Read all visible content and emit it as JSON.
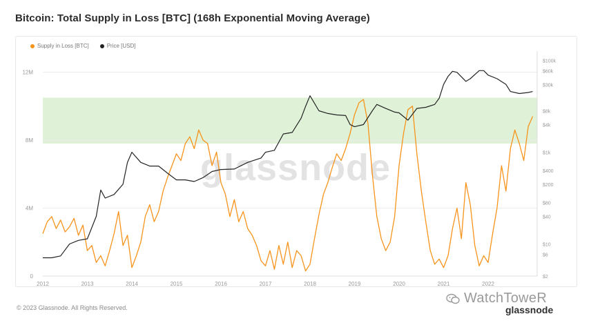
{
  "title": "Bitcoin: Total Supply in Loss [BTC] (168h Exponential Moving Average)",
  "footer": "© 2023 Glassnode. All Rights Reserved.",
  "watermark_center": "glassnode",
  "watermark_brand": "WatchToweR",
  "watermark_sub": "glassnode",
  "colors": {
    "supply": "#f7931a",
    "price": "#222222",
    "band": "#d9efcf",
    "grid": "#ececec",
    "axis_text": "#999999"
  },
  "chart_data": {
    "type": "line",
    "title": "Bitcoin: Total Supply in Loss [BTC] (168h Exponential Moving Average)",
    "legend": {
      "placement": "top-left",
      "entries": [
        "Supply in Loss [BTC]",
        "Price [USD]"
      ]
    },
    "x_ticks": [
      "2012",
      "2013",
      "2014",
      "2015",
      "2016",
      "2017",
      "2018",
      "2019",
      "2020",
      "2021",
      "2022"
    ],
    "x_range": [
      2012.0,
      2023.1
    ],
    "y_left": {
      "ticks": [
        "0",
        "4M",
        "8M",
        "12M"
      ],
      "values": [
        0,
        4000000,
        8000000,
        12000000
      ],
      "range": [
        0,
        13000000
      ]
    },
    "y_right": {
      "scale": "log",
      "ticks": [
        "$2",
        "$6",
        "$10",
        "$40",
        "$80",
        "$200",
        "$400",
        "$1k",
        "$4k",
        "$8k",
        "$30k",
        "$60k",
        "$100k"
      ],
      "values": [
        2,
        6,
        10,
        40,
        80,
        200,
        400,
        1000,
        4000,
        8000,
        30000,
        60000,
        100000
      ],
      "range": [
        2,
        130000
      ]
    },
    "band": {
      "from": 7800000,
      "to": 10500000
    },
    "grid": true,
    "series": [
      {
        "name": "Supply in Loss [BTC]",
        "axis": "left",
        "x": [
          2012.0,
          2012.1,
          2012.2,
          2012.3,
          2012.4,
          2012.5,
          2012.6,
          2012.7,
          2012.8,
          2012.9,
          2013.0,
          2013.1,
          2013.2,
          2013.3,
          2013.4,
          2013.5,
          2013.6,
          2013.7,
          2013.8,
          2013.9,
          2014.0,
          2014.1,
          2014.2,
          2014.3,
          2014.4,
          2014.5,
          2014.6,
          2014.7,
          2014.8,
          2014.9,
          2015.0,
          2015.1,
          2015.2,
          2015.3,
          2015.4,
          2015.5,
          2015.6,
          2015.7,
          2015.8,
          2015.9,
          2016.0,
          2016.1,
          2016.2,
          2016.3,
          2016.4,
          2016.5,
          2016.6,
          2016.7,
          2016.8,
          2016.9,
          2017.0,
          2017.1,
          2017.2,
          2017.3,
          2017.4,
          2017.5,
          2017.6,
          2017.7,
          2017.8,
          2017.9,
          2018.0,
          2018.1,
          2018.2,
          2018.3,
          2018.4,
          2018.5,
          2018.6,
          2018.7,
          2018.8,
          2018.9,
          2019.0,
          2019.1,
          2019.2,
          2019.3,
          2019.4,
          2019.5,
          2019.6,
          2019.7,
          2019.8,
          2019.9,
          2020.0,
          2020.1,
          2020.2,
          2020.3,
          2020.4,
          2020.5,
          2020.6,
          2020.7,
          2020.8,
          2020.9,
          2021.0,
          2021.1,
          2021.2,
          2021.3,
          2021.4,
          2021.5,
          2021.6,
          2021.7,
          2021.8,
          2021.9,
          2022.0,
          2022.1,
          2022.2,
          2022.3,
          2022.4,
          2022.5,
          2022.6,
          2022.7,
          2022.8,
          2022.9,
          2023.0
        ],
        "values": [
          2500000,
          3200000,
          3500000,
          2800000,
          3300000,
          2600000,
          2900000,
          3400000,
          2400000,
          3000000,
          1500000,
          1800000,
          800000,
          1200000,
          600000,
          1500000,
          2500000,
          3800000,
          1800000,
          2400000,
          500000,
          1200000,
          2000000,
          3500000,
          4200000,
          3200000,
          3800000,
          5000000,
          5800000,
          6500000,
          7200000,
          6800000,
          7800000,
          8200000,
          7500000,
          8600000,
          8000000,
          7800000,
          6500000,
          7300000,
          5500000,
          4800000,
          3500000,
          4500000,
          3200000,
          3800000,
          2800000,
          2400000,
          1800000,
          900000,
          600000,
          1500000,
          400000,
          1800000,
          700000,
          2000000,
          500000,
          1500000,
          1200000,
          300000,
          700000,
          2200000,
          3600000,
          4800000,
          5500000,
          6400000,
          7200000,
          6800000,
          7500000,
          8400000,
          9500000,
          10200000,
          10400000,
          9000000,
          6000000,
          3500000,
          2200000,
          1500000,
          2000000,
          3500000,
          6500000,
          8400000,
          9800000,
          10000000,
          7200000,
          5000000,
          3200000,
          1500000,
          700000,
          1000000,
          500000,
          1200000,
          2800000,
          4000000,
          2200000,
          5500000,
          4200000,
          1800000,
          600000,
          1200000,
          800000,
          2500000,
          4000000,
          6500000,
          5000000,
          7500000,
          8600000,
          7800000,
          6800000,
          8800000,
          9400000
        ]
      },
      {
        "name": "Price [USD]",
        "axis": "right",
        "x": [
          2012.0,
          2012.2,
          2012.4,
          2012.6,
          2012.8,
          2013.0,
          2013.2,
          2013.3,
          2013.4,
          2013.6,
          2013.8,
          2013.9,
          2014.0,
          2014.2,
          2014.4,
          2014.6,
          2014.8,
          2015.0,
          2015.2,
          2015.4,
          2015.6,
          2015.8,
          2016.0,
          2016.3,
          2016.6,
          2016.9,
          2017.0,
          2017.2,
          2017.4,
          2017.6,
          2017.8,
          2017.9,
          2018.0,
          2018.2,
          2018.4,
          2018.6,
          2018.8,
          2018.9,
          2019.0,
          2019.2,
          2019.4,
          2019.5,
          2019.7,
          2019.9,
          2020.0,
          2020.2,
          2020.4,
          2020.6,
          2020.8,
          2020.9,
          2021.0,
          2021.1,
          2021.2,
          2021.3,
          2021.5,
          2021.6,
          2021.8,
          2021.9,
          2022.0,
          2022.2,
          2022.4,
          2022.5,
          2022.7,
          2022.9,
          2023.0
        ],
        "values": [
          5,
          5,
          5.5,
          10,
          12,
          13,
          40,
          150,
          100,
          120,
          200,
          600,
          1000,
          600,
          500,
          500,
          350,
          250,
          250,
          230,
          280,
          380,
          420,
          430,
          600,
          750,
          1000,
          1100,
          2500,
          2700,
          5500,
          10000,
          17000,
          8000,
          7000,
          6500,
          6300,
          4000,
          3600,
          4000,
          8000,
          11000,
          9000,
          7500,
          7200,
          5000,
          9000,
          9500,
          11000,
          15000,
          30000,
          45000,
          58000,
          55000,
          35000,
          40000,
          60000,
          60000,
          48000,
          40000,
          30000,
          21000,
          19000,
          20000,
          21000
        ]
      }
    ]
  }
}
